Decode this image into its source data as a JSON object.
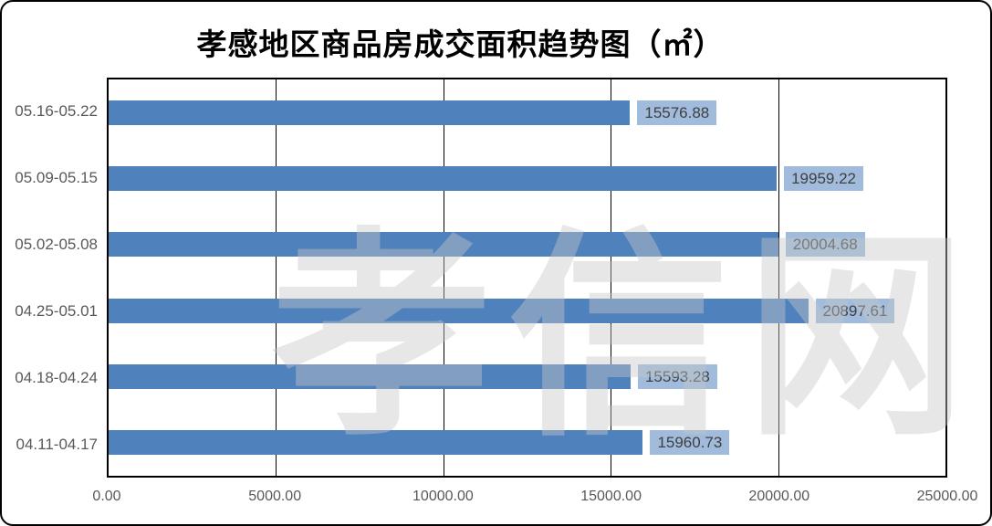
{
  "title": "孝感地区商品房成交面积趋势图（㎡）",
  "watermark": "孝信网",
  "colors": {
    "bar": "#4F81BD",
    "label_bg": "#A0BBDC",
    "label_text": "#404040",
    "axis_text": "#595959",
    "watermark": "#C8C8C8",
    "gridline": "#000000"
  },
  "chart_data": {
    "type": "bar",
    "orientation": "horizontal",
    "title": "孝感地区商品房成交面积趋势图（㎡）",
    "categories": [
      "05.16-05.22",
      "05.09-05.15",
      "05.02-05.08",
      "04.25-05.01",
      "04.18-04.24",
      "04.11-04.17"
    ],
    "values": [
      15576.88,
      19959.22,
      20004.68,
      20897.61,
      15593.28,
      15960.73
    ],
    "value_labels": [
      "15576.88",
      "19959.22",
      "20004.68",
      "20897.61",
      "15593.28",
      "15960.73"
    ],
    "xlim": [
      0,
      25000
    ],
    "x_ticks": [
      "0.00",
      "5000.00",
      "10000.00",
      "15000.00",
      "20000.00",
      "25000.00"
    ],
    "grid": true,
    "legend": "none",
    "xlabel": "",
    "ylabel": ""
  }
}
